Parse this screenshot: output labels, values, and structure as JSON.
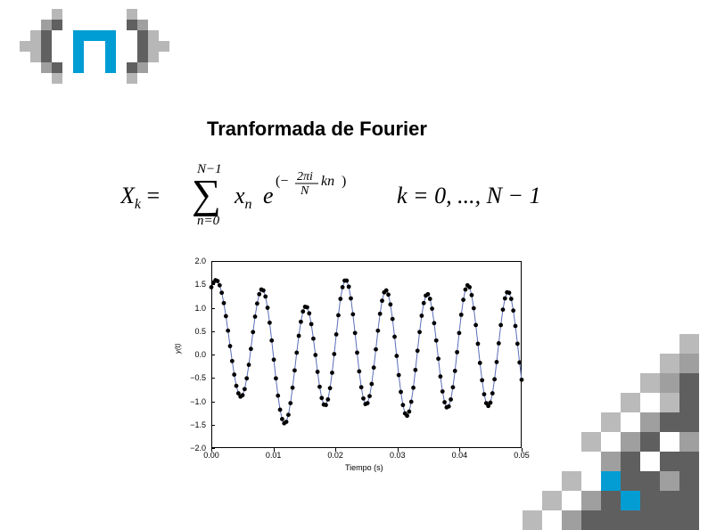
{
  "title": "Tranformada de Fourier",
  "formula": {
    "lhs_var": "X",
    "lhs_sub": "k",
    "sum_upper": "N−1",
    "sum_lower": "n=0",
    "term_var": "x",
    "term_sub": "n",
    "exp_base": "e",
    "exp_text": "(−(2πi/N) kn)",
    "range": "k = 0, ..., N − 1"
  },
  "chart": {
    "type": "line+scatter",
    "xlabel": "Tiempo (s)",
    "ylabel": "y(t)",
    "xlim": [
      0.0,
      0.05
    ],
    "ylim": [
      -2.0,
      2.0
    ],
    "xticks": [
      "0.00",
      "0.01",
      "0.02",
      "0.03",
      "0.04",
      "0.05"
    ],
    "yticks": [
      "2.0",
      "1.5",
      "1.0",
      "0.5",
      "0.0",
      "−0.5",
      "−1.0",
      "−1.5",
      "−2.0"
    ],
    "line_color": "#5a6db8",
    "marker_color": "#000000",
    "background_color": "#ffffff",
    "plot_border_color": "#000000",
    "label_fontsize": 9,
    "line_width": 1.0,
    "marker_size": 2.4,
    "data_y": [
      1.44,
      1.54,
      1.59,
      1.57,
      1.48,
      1.32,
      1.1,
      0.82,
      0.51,
      0.18,
      -0.14,
      -0.43,
      -0.67,
      -0.83,
      -0.9,
      -0.87,
      -0.74,
      -0.51,
      -0.22,
      0.12,
      0.48,
      0.81,
      1.09,
      1.29,
      1.39,
      1.37,
      1.24,
      1.0,
      0.68,
      0.3,
      -0.11,
      -0.51,
      -0.88,
      -1.18,
      -1.38,
      -1.47,
      -1.44,
      -1.29,
      -1.04,
      -0.71,
      -0.34,
      0.04,
      0.4,
      0.7,
      0.92,
      1.02,
      1.01,
      0.88,
      0.65,
      0.34,
      -0.01,
      -0.37,
      -0.69,
      -0.93,
      -1.07,
      -1.08,
      -0.96,
      -0.72,
      -0.39,
      0.01,
      0.43,
      0.84,
      1.19,
      1.44,
      1.58,
      1.58,
      1.45,
      1.2,
      0.86,
      0.46,
      0.04,
      -0.36,
      -0.7,
      -0.94,
      -1.06,
      -1.04,
      -0.89,
      -0.63,
      -0.28,
      0.11,
      0.51,
      0.87,
      1.15,
      1.33,
      1.37,
      1.28,
      1.07,
      0.76,
      0.38,
      -0.03,
      -0.44,
      -0.8,
      -1.08,
      -1.26,
      -1.31,
      -1.22,
      -1.01,
      -0.71,
      -0.33,
      0.08,
      0.48,
      0.83,
      1.1,
      1.26,
      1.29,
      1.19,
      0.98,
      0.67,
      0.3,
      -0.09,
      -0.47,
      -0.79,
      -1.02,
      -1.13,
      -1.11,
      -0.96,
      -0.7,
      -0.35,
      0.05,
      0.46,
      0.85,
      1.17,
      1.39,
      1.48,
      1.44,
      1.27,
      0.99,
      0.63,
      0.23,
      -0.18,
      -0.55,
      -0.85,
      -1.04,
      -1.1,
      -1.03,
      -0.83,
      -0.53,
      -0.16,
      0.24,
      0.63,
      0.96,
      1.2,
      1.33,
      1.32,
      1.19,
      0.94,
      0.61,
      0.23,
      -0.17,
      -0.54
    ]
  },
  "logo_colors": {
    "dark": "#606060",
    "mid": "#9f9f9f",
    "light": "#b7b7b7",
    "accent": "#009dd4"
  },
  "deco_colors": {
    "dark": "#5f5f5f",
    "mid": "#9f9f9f",
    "light": "#bababa",
    "accent": "#049dd3"
  }
}
